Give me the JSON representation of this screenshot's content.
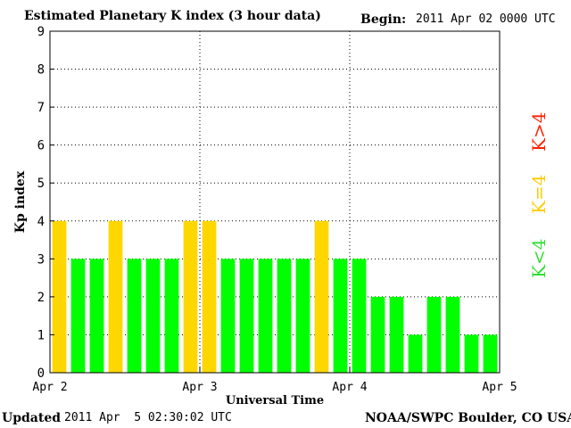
{
  "header": {
    "title": "Estimated Planetary K index (3 hour data)",
    "begin_label": "Begin:",
    "begin_value": "2011 Apr 02 0000 UTC"
  },
  "footer": {
    "updated_label": "Updated",
    "updated_value": "2011 Apr  5 02:30:02 UTC",
    "source": "NOAA/SWPC Boulder, CO USA"
  },
  "legend": {
    "high": "K>4",
    "equal": "K=4",
    "low": "K<4"
  },
  "colors": {
    "low": "#00ff00",
    "equal": "#ffd700",
    "high": "#ff3300",
    "legend_low": "#33dd33",
    "legend_equal": "#ffcc00",
    "legend_high": "#ff2200"
  },
  "chart_data": {
    "type": "bar",
    "title": "Estimated Planetary K index (3 hour data)",
    "xlabel": "Universal Time",
    "ylabel": "Kp index",
    "ylim": [
      0,
      9
    ],
    "yticks": [
      "0",
      "1",
      "2",
      "3",
      "4",
      "5",
      "6",
      "7",
      "8",
      "9"
    ],
    "xticks": [
      "Apr 2",
      "Apr 3",
      "Apr 4",
      "Apr 5"
    ],
    "grid": true,
    "values": [
      4,
      3,
      3,
      4,
      3,
      3,
      3,
      4,
      4,
      3,
      3,
      3,
      3,
      3,
      4,
      3,
      3,
      2,
      2,
      1,
      2,
      2,
      1,
      1
    ]
  }
}
